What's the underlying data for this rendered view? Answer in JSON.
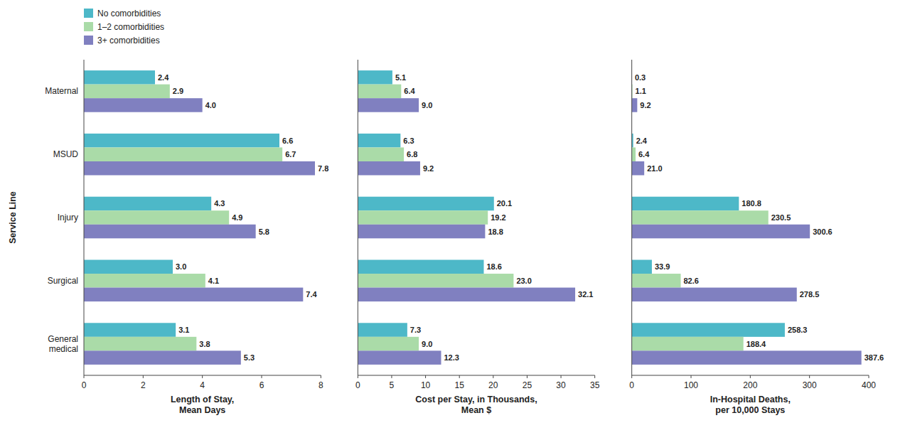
{
  "chart_data": [
    {
      "type": "bar",
      "orientation": "horizontal",
      "legend": "upper left",
      "data_labels": true,
      "categories": [
        "Maternal",
        "MSUD",
        "Injury",
        "Surgical",
        "General\nmedical"
      ],
      "x_label": "Length of Stay,\nMean Days",
      "y_label": "Service Line",
      "xlim": [
        0,
        8
      ],
      "xticks": [
        0,
        2,
        4,
        6,
        8
      ],
      "grid": false,
      "series": [
        {
          "name": "No comorbidities",
          "color": "#4db8c8",
          "values": [
            2.4,
            6.6,
            4.3,
            3.0,
            3.1
          ],
          "value_labels": [
            "2.4",
            "6.6",
            "4.3",
            "3.0",
            "3.1"
          ]
        },
        {
          "name": "1–2 comorbidities",
          "color": "#aadba8",
          "values": [
            2.9,
            6.7,
            4.9,
            4.1,
            3.8
          ],
          "value_labels": [
            "2.9",
            "6.7",
            "4.9",
            "4.1",
            "3.8"
          ]
        },
        {
          "name": "3+ comorbidities",
          "color": "#8080c0",
          "values": [
            4.0,
            7.8,
            5.8,
            7.4,
            5.3
          ],
          "value_labels": [
            "4.0",
            "7.8",
            "5.8",
            "7.4",
            "5.3"
          ]
        }
      ]
    },
    {
      "type": "bar",
      "orientation": "horizontal",
      "data_labels": true,
      "tick_labels": "x",
      "categories": [
        "Maternal",
        "MSUD",
        "Injury",
        "Surgical",
        "General\nmedical"
      ],
      "x_label": "Cost per Stay, in Thousands,\nMean $",
      "xlim": [
        0,
        35
      ],
      "xticks": [
        0,
        5,
        10,
        15,
        20,
        25,
        30,
        35
      ],
      "grid": false,
      "series": [
        {
          "name": "No comorbidities",
          "color": "#4db8c8",
          "values": [
            5.1,
            6.3,
            20.1,
            18.6,
            7.3
          ],
          "value_labels": [
            "5.1",
            "6.3",
            "20.1",
            "18.6",
            "7.3"
          ]
        },
        {
          "name": "1–2 comorbidities",
          "color": "#aadba8",
          "values": [
            6.4,
            6.8,
            19.2,
            23.0,
            9.0
          ],
          "value_labels": [
            "6.4",
            "6.8",
            "19.2",
            "23.0",
            "9.0"
          ]
        },
        {
          "name": "3+ comorbidities",
          "color": "#8080c0",
          "values": [
            9.0,
            9.2,
            18.8,
            32.1,
            12.3
          ],
          "value_labels": [
            "9.0",
            "9.2",
            "18.8",
            "32.1",
            "12.3"
          ]
        }
      ]
    },
    {
      "type": "bar",
      "orientation": "horizontal",
      "data_labels": true,
      "tick_labels": "x",
      "categories": [
        "Maternal",
        "MSUD",
        "Injury",
        "Surgical",
        "General\nmedical"
      ],
      "x_label": "In-Hospital Deaths,\nper 10,000 Stays",
      "xlim": [
        0,
        400
      ],
      "xticks": [
        0,
        100,
        200,
        300,
        400
      ],
      "grid": false,
      "series": [
        {
          "name": "No comorbidities",
          "color": "#4db8c8",
          "values": [
            0.3,
            2.4,
            180.8,
            33.9,
            258.3
          ],
          "value_labels": [
            "0.3",
            "2.4",
            "180.8",
            "33.9",
            "258.3"
          ]
        },
        {
          "name": "1–2 comorbidities",
          "color": "#aadba8",
          "values": [
            1.1,
            6.4,
            230.5,
            82.6,
            188.4
          ],
          "value_labels": [
            "1.1",
            "6.4",
            "230.5",
            "82.6",
            "188.4"
          ]
        },
        {
          "name": "3+ comorbidities",
          "color": "#8080c0",
          "values": [
            9.2,
            21.0,
            300.6,
            278.5,
            387.6
          ],
          "value_labels": [
            "9.2",
            "21.0",
            "300.6",
            "278.5",
            "387.6"
          ]
        }
      ]
    }
  ]
}
